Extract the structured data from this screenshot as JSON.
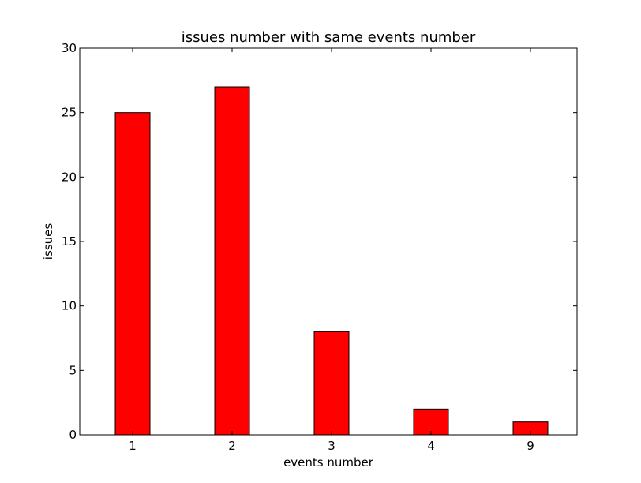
{
  "chart_data": {
    "type": "bar",
    "title": "issues number with same events number",
    "xlabel": "events number",
    "ylabel": "issues",
    "categories": [
      "1",
      "2",
      "3",
      "4",
      "9"
    ],
    "values": [
      25,
      27,
      8,
      2,
      1
    ],
    "ylim": [
      0,
      30
    ],
    "yticks": [
      0,
      5,
      10,
      15,
      20,
      25,
      30
    ],
    "grid": false,
    "legend": "none",
    "bar_color": "#ff0000",
    "edge_color": "#000000"
  }
}
